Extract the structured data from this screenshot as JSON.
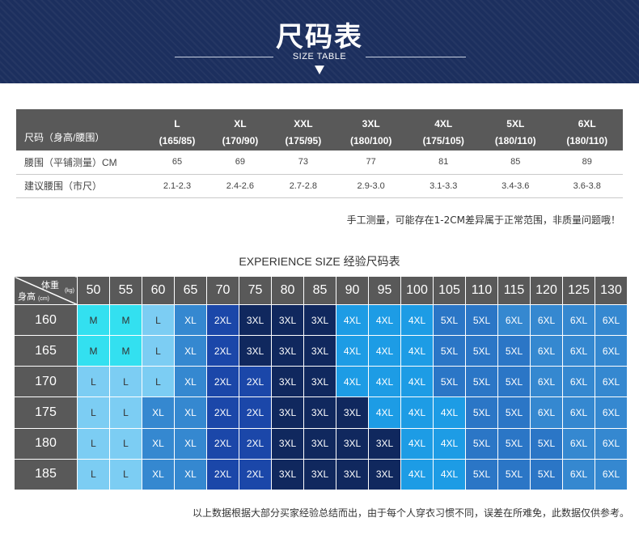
{
  "header": {
    "title": "尺码表",
    "subtitle": "SIZE TABLE"
  },
  "size_table": {
    "row_header": "尺码（身高/腰围）",
    "sizes": [
      {
        "size": "L",
        "spec": "(165/85)"
      },
      {
        "size": "XL",
        "spec": "(170/90)"
      },
      {
        "size": "XXL",
        "spec": "(175/95)"
      },
      {
        "size": "3XL",
        "spec": "(180/100)"
      },
      {
        "size": "4XL",
        "spec": "(175/105)"
      },
      {
        "size": "5XL",
        "spec": "(180/110)"
      },
      {
        "size": "6XL",
        "spec": "(180/110)"
      }
    ],
    "rows": [
      {
        "label": "腰围（平铺测量）CM",
        "values": [
          "65",
          "69",
          "73",
          "77",
          "81",
          "85",
          "89"
        ]
      },
      {
        "label": "建议腰围（市尺）",
        "values": [
          "2.1-2.3",
          "2.4-2.6",
          "2.7-2.8",
          "2.9-3.0",
          "3.1-3.3",
          "3.4-3.6",
          "3.6-3.8"
        ]
      }
    ]
  },
  "note_measure": "手工测量，可能存在1-2CM差异属于正常范围，非质量问题哦！",
  "experience": {
    "title": "EXPERIENCE SIZE 经验尺码表",
    "corner": {
      "weight_label": "体重",
      "weight_unit": "(kg)",
      "height_label": "身高",
      "height_unit": "(cm)"
    },
    "weights": [
      "50",
      "55",
      "60",
      "65",
      "70",
      "75",
      "80",
      "85",
      "90",
      "95",
      "100",
      "105",
      "110",
      "115",
      "120",
      "125",
      "130"
    ],
    "rows": [
      {
        "height": "160",
        "sizes": [
          "M",
          "M",
          "L",
          "XL",
          "2XL",
          "3XL",
          "3XL",
          "3XL",
          "4XL",
          "4XL",
          "4XL",
          "5XL",
          "5XL",
          "6XL",
          "6XL",
          "6XL",
          "6XL"
        ]
      },
      {
        "height": "165",
        "sizes": [
          "M",
          "M",
          "L",
          "XL",
          "2XL",
          "3XL",
          "3XL",
          "3XL",
          "4XL",
          "4XL",
          "4XL",
          "5XL",
          "5XL",
          "5XL",
          "6XL",
          "6XL",
          "6XL"
        ]
      },
      {
        "height": "170",
        "sizes": [
          "L",
          "L",
          "L",
          "XL",
          "2XL",
          "2XL",
          "3XL",
          "3XL",
          "4XL",
          "4XL",
          "4XL",
          "5XL",
          "5XL",
          "5XL",
          "6XL",
          "6XL",
          "6XL"
        ]
      },
      {
        "height": "175",
        "sizes": [
          "L",
          "L",
          "XL",
          "XL",
          "2XL",
          "2XL",
          "3XL",
          "3XL",
          "3XL",
          "4XL",
          "4XL",
          "4XL",
          "5XL",
          "5XL",
          "6XL",
          "6XL",
          "6XL"
        ]
      },
      {
        "height": "180",
        "sizes": [
          "L",
          "L",
          "XL",
          "XL",
          "2XL",
          "2XL",
          "3XL",
          "3XL",
          "3XL",
          "3XL",
          "4XL",
          "4XL",
          "5XL",
          "5XL",
          "5XL",
          "6XL",
          "6XL"
        ]
      },
      {
        "height": "185",
        "sizes": [
          "L",
          "L",
          "XL",
          "XL",
          "2XL",
          "2XL",
          "3XL",
          "3XL",
          "3XL",
          "3XL",
          "4XL",
          "4XL",
          "5XL",
          "5XL",
          "5XL",
          "6XL",
          "6XL"
        ]
      }
    ],
    "colors": {
      "M": "#33e0f0",
      "L": "#7ccdf3",
      "XL": "#3588d0",
      "2XL": "#1b47a9",
      "3XL": "#10285e",
      "4XL": "#1d9ce5",
      "5XL": "#2b76c6",
      "6XL": "#3588d0"
    }
  },
  "note_experience": "以上数据根据大部分买家经验总结而出，由于每个人穿衣习惯不同，误差在所难免，此数据仅供参考。"
}
